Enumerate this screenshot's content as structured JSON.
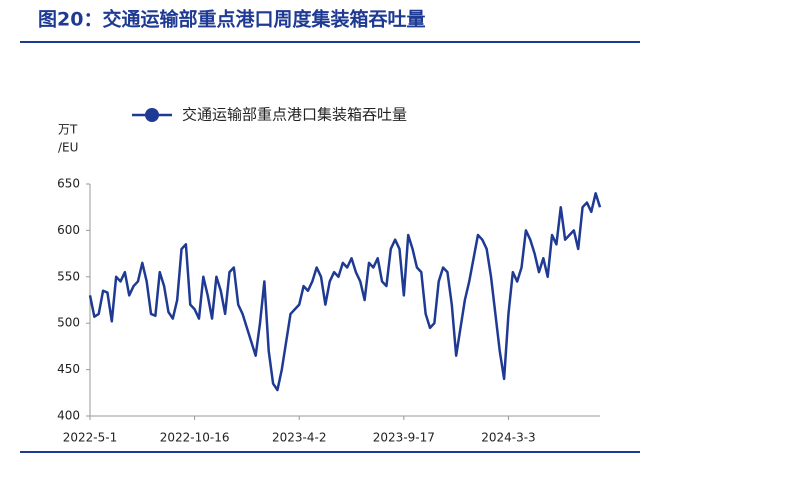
{
  "chart_data": {
    "type": "line",
    "title": "图20：交通运输部重点港口周度集装箱吞吐量",
    "ylabel": [
      "万T",
      "/EU"
    ],
    "categories": [
      "2022-5-1",
      null,
      null,
      null,
      null,
      null,
      null,
      null,
      null,
      null,
      null,
      null,
      null,
      null,
      null,
      null,
      null,
      null,
      null,
      null,
      null,
      null,
      null,
      null,
      "2022-10-16",
      null,
      null,
      null,
      null,
      null,
      null,
      null,
      null,
      null,
      null,
      null,
      null,
      null,
      null,
      null,
      null,
      null,
      null,
      null,
      null,
      null,
      null,
      null,
      "2023-4-2",
      null,
      null,
      null,
      null,
      null,
      null,
      null,
      null,
      null,
      null,
      null,
      null,
      null,
      null,
      null,
      null,
      null,
      null,
      null,
      null,
      null,
      null,
      null,
      "2023-9-17",
      null,
      null,
      null,
      null,
      null,
      null,
      null,
      null,
      null,
      null,
      null,
      null,
      null,
      null,
      null,
      null,
      null,
      null,
      null,
      null,
      null,
      null,
      null,
      "2024-3-3",
      null,
      null,
      null,
      null,
      null,
      null,
      null,
      null,
      null,
      null,
      null,
      null,
      null,
      null,
      null,
      null,
      null,
      null,
      null,
      null,
      null
    ],
    "series": [
      {
        "name": "交通运输部重点港口集装箱吞吐量",
        "color": "#1f3a93",
        "values": [
          530,
          507,
          510,
          535,
          533,
          502,
          550,
          545,
          555,
          530,
          540,
          545,
          565,
          545,
          510,
          508,
          555,
          540,
          512,
          505,
          525,
          580,
          585,
          520,
          515,
          505,
          550,
          530,
          505,
          550,
          535,
          510,
          555,
          560,
          520,
          510,
          495,
          480,
          465,
          500,
          545,
          470,
          435,
          428,
          450,
          480,
          510,
          515,
          520,
          540,
          535,
          545,
          560,
          550,
          520,
          545,
          555,
          550,
          565,
          560,
          570,
          555,
          545,
          525,
          565,
          560,
          570,
          545,
          540,
          580,
          590,
          580,
          530,
          595,
          580,
          560,
          555,
          510,
          495,
          500,
          545,
          560,
          555,
          520,
          465,
          495,
          525,
          545,
          570,
          595,
          590,
          580,
          550,
          510,
          470,
          440,
          510,
          555,
          545,
          560,
          600,
          590,
          575,
          555,
          570,
          550,
          595,
          585,
          625,
          590,
          595,
          600,
          580,
          625,
          630,
          620,
          640,
          625
        ]
      }
    ],
    "ylim": [
      400,
      650
    ],
    "yticks": [
      400,
      450,
      500,
      550,
      600,
      650
    ]
  }
}
